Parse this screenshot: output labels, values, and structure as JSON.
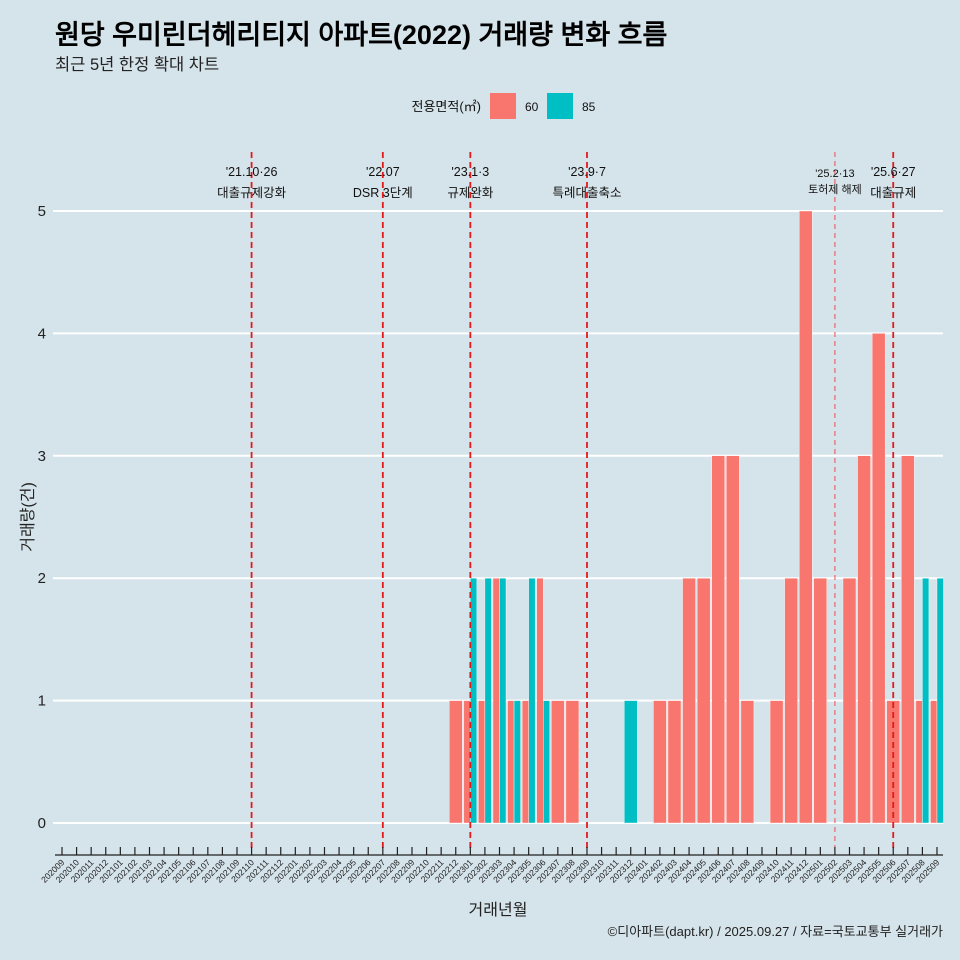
{
  "title": "원당 우미린더헤리티지 아파트(2022) 거래량 변화 흐름",
  "subtitle": "최근 5년 한정 확대 차트",
  "caption": "©디아파트(dapt.kr) / 2025.09.27 / 자료=국토교통부 실거래가",
  "colors": {
    "background": "#D5E3EA",
    "grid": "#FFFFFF",
    "axis": "#222222",
    "event_line": "#E31A1C",
    "event_line_light": "#E8474A"
  },
  "chart_data": {
    "type": "bar",
    "title": "원당 우미린더헤리티지 아파트(2022) 거래량 변화 흐름",
    "subtitle": "최근 5년 한정 확대 차트",
    "xlabel": "거래년월",
    "ylabel": "거래량(건)",
    "ylim": [
      0,
      5
    ],
    "yticks": [
      0,
      1,
      2,
      3,
      4,
      5
    ],
    "grid": true,
    "legend": {
      "title": "전용면적(㎡)",
      "position": "top",
      "entries": [
        {
          "label": "60",
          "color": "#F8766D"
        },
        {
          "label": "85",
          "color": "#00BFC4"
        }
      ]
    },
    "categories": [
      "202009",
      "202010",
      "202011",
      "202012",
      "202101",
      "202102",
      "202103",
      "202104",
      "202105",
      "202106",
      "202107",
      "202108",
      "202109",
      "202110",
      "202111",
      "202112",
      "202201",
      "202202",
      "202203",
      "202204",
      "202205",
      "202206",
      "202207",
      "202208",
      "202209",
      "202210",
      "202211",
      "202212",
      "202301",
      "202302",
      "202303",
      "202304",
      "202305",
      "202306",
      "202307",
      "202308",
      "202309",
      "202310",
      "202311",
      "202312",
      "202401",
      "202402",
      "202403",
      "202404",
      "202405",
      "202406",
      "202407",
      "202408",
      "202409",
      "202410",
      "202411",
      "202412",
      "202501",
      "202502",
      "202503",
      "202504",
      "202505",
      "202506",
      "202507",
      "202508",
      "202509"
    ],
    "series": [
      {
        "name": "60",
        "color": "#F8766D",
        "values": [
          0,
          0,
          0,
          0,
          0,
          0,
          0,
          0,
          0,
          0,
          0,
          0,
          0,
          0,
          0,
          0,
          0,
          0,
          0,
          0,
          0,
          0,
          0,
          0,
          0,
          0,
          0,
          1,
          1,
          1,
          2,
          1,
          1,
          2,
          1,
          1,
          0,
          0,
          0,
          0,
          0,
          1,
          1,
          2,
          2,
          3,
          3,
          1,
          0,
          1,
          2,
          5,
          2,
          0,
          2,
          3,
          4,
          1,
          3,
          1,
          1
        ]
      },
      {
        "name": "85",
        "color": "#00BFC4",
        "values": [
          0,
          0,
          0,
          0,
          0,
          0,
          0,
          0,
          0,
          0,
          0,
          0,
          0,
          0,
          0,
          0,
          0,
          0,
          0,
          0,
          0,
          0,
          0,
          0,
          0,
          0,
          0,
          0,
          2,
          2,
          2,
          1,
          2,
          1,
          0,
          0,
          0,
          0,
          0,
          1,
          0,
          0,
          0,
          0,
          0,
          0,
          0,
          0,
          0,
          0,
          0,
          0,
          0,
          0,
          0,
          0,
          0,
          0,
          0,
          2,
          2
        ]
      }
    ],
    "annotations": [
      {
        "x": "202110",
        "date": "'21.10·26",
        "label": "대출규제강화",
        "style": "strong"
      },
      {
        "x": "202207",
        "date": "'22.07",
        "label": "DSR 3단계",
        "style": "strong"
      },
      {
        "x": "202301",
        "date": "'23.1·3",
        "label": "규제완화",
        "style": "strong"
      },
      {
        "x": "202309",
        "date": "'23.9·7",
        "label": "특례대출축소",
        "style": "strong"
      },
      {
        "x": "202502",
        "date": "'25.2·13",
        "label": "토허제 해제",
        "style": "light"
      },
      {
        "x": "202506",
        "date": "'25.6·27",
        "label": "대출규제",
        "style": "strong"
      }
    ]
  }
}
